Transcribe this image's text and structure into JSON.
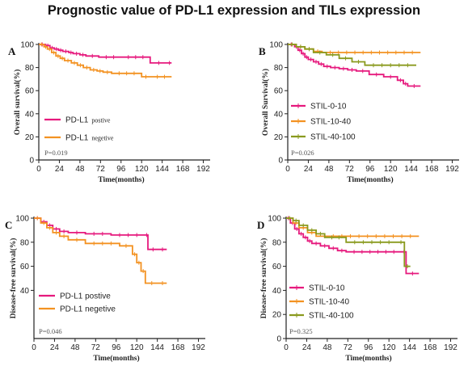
{
  "title": "Prognostic value of PD-L1 expression and TILs expression",
  "chart_data": [
    {
      "type": "line",
      "panel": "A",
      "title": "",
      "xlabel": "Time(months)",
      "ylabel": "Overall survival(%)",
      "xlim": [
        0,
        200
      ],
      "ylim": [
        0,
        100
      ],
      "xticks": [
        0,
        24,
        48,
        72,
        96,
        120,
        144,
        168,
        192
      ],
      "yticks": [
        0,
        20,
        40,
        60,
        80,
        100
      ],
      "legend_position": "bottom-left",
      "annotation": "P=0.019",
      "series": [
        {
          "name": "PD-L1",
          "name_suffix": "postive",
          "color": "#e6197d",
          "x": [
            0,
            8,
            13,
            18,
            23,
            28,
            35,
            40,
            48,
            55,
            70,
            96,
            130,
            150,
            155
          ],
          "y": [
            100,
            99,
            97,
            96,
            95,
            94,
            93,
            92,
            91,
            90,
            89,
            89,
            84,
            84,
            84
          ]
        },
        {
          "name": "PD-L1",
          "name_suffix": "negetive",
          "color": "#f39222",
          "x": [
            0,
            6,
            10,
            15,
            20,
            25,
            30,
            38,
            45,
            52,
            60,
            68,
            75,
            85,
            120,
            130,
            155
          ],
          "y": [
            100,
            98,
            96,
            93,
            90,
            88,
            86,
            84,
            82,
            80,
            78,
            77,
            76,
            75,
            72,
            72,
            72
          ]
        }
      ]
    },
    {
      "type": "line",
      "panel": "B",
      "title": "",
      "xlabel": "Time(months)",
      "ylabel": "Overall Survival(%)",
      "xlim": [
        0,
        200
      ],
      "ylim": [
        0,
        100
      ],
      "xticks": [
        0,
        24,
        48,
        72,
        96,
        120,
        144,
        168,
        192
      ],
      "yticks": [
        0,
        20,
        40,
        60,
        80,
        100
      ],
      "legend_position": "bottom-left",
      "annotation": "P=0.026",
      "series": [
        {
          "name": "STIL-0-10",
          "color": "#e6197d",
          "x": [
            0,
            8,
            12,
            16,
            20,
            24,
            30,
            36,
            42,
            50,
            60,
            70,
            80,
            95,
            112,
            128,
            135,
            140,
            155
          ],
          "y": [
            100,
            98,
            95,
            92,
            89,
            87,
            85,
            83,
            81,
            80,
            79,
            78,
            77,
            74,
            72,
            69,
            66,
            64,
            64
          ]
        },
        {
          "name": "STIL-10-40",
          "color": "#f39222",
          "x": [
            0,
            10,
            20,
            30,
            40,
            155
          ],
          "y": [
            100,
            98,
            96,
            94,
            93,
            93
          ]
        },
        {
          "name": "STIL-40-100",
          "color": "#8a9a1e",
          "x": [
            0,
            10,
            20,
            30,
            45,
            60,
            75,
            90,
            150
          ],
          "y": [
            100,
            98,
            96,
            93,
            91,
            88,
            85,
            82,
            82
          ]
        }
      ]
    },
    {
      "type": "line",
      "panel": "C",
      "title": "",
      "xlabel": "Time(months)",
      "ylabel": "Disease-free survival(%)",
      "xlim": [
        0,
        200
      ],
      "ylim": [
        0,
        100
      ],
      "xticks": [
        0,
        24,
        48,
        72,
        96,
        120,
        144,
        168,
        192
      ],
      "yticks": [
        40,
        60,
        80,
        100
      ],
      "legend_position": "bottom-left",
      "annotation": "P=0.046",
      "series": [
        {
          "name": "PD-L1 postive",
          "color": "#e6197d",
          "x": [
            0,
            8,
            15,
            22,
            30,
            40,
            60,
            90,
            130,
            133,
            145,
            155
          ],
          "y": [
            100,
            97,
            94,
            91,
            89,
            88,
            87,
            86,
            86,
            74,
            74,
            74
          ]
        },
        {
          "name": "PD-L1 negetive",
          "color": "#f39222",
          "x": [
            0,
            8,
            15,
            22,
            30,
            40,
            60,
            100,
            115,
            120,
            125,
            130,
            145,
            155
          ],
          "y": [
            100,
            96,
            92,
            88,
            85,
            82,
            79,
            77,
            70,
            63,
            56,
            46,
            46,
            46
          ]
        }
      ]
    },
    {
      "type": "line",
      "panel": "D",
      "title": "",
      "xlabel": "Time(months)",
      "ylabel": "Disease-free survival(%)",
      "xlim": [
        0,
        200
      ],
      "ylim": [
        0,
        100
      ],
      "xticks": [
        0,
        24,
        48,
        72,
        96,
        120,
        144,
        168,
        192
      ],
      "yticks": [
        0,
        20,
        40,
        60,
        80,
        100
      ],
      "legend_position": "bottom-left",
      "annotation": "P=0.325",
      "series": [
        {
          "name": "STIL-0-10",
          "color": "#e6197d",
          "x": [
            0,
            5,
            10,
            15,
            20,
            25,
            30,
            40,
            50,
            60,
            70,
            135,
            140,
            155
          ],
          "y": [
            100,
            96,
            91,
            87,
            84,
            81,
            79,
            77,
            75,
            73,
            72,
            72,
            54,
            54
          ]
        },
        {
          "name": "STIL-10-40",
          "color": "#f39222",
          "x": [
            0,
            8,
            15,
            25,
            35,
            155
          ],
          "y": [
            100,
            96,
            92,
            88,
            85,
            85
          ]
        },
        {
          "name": "STIL-40-100",
          "color": "#8a9a1e",
          "x": [
            0,
            8,
            15,
            25,
            35,
            45,
            70,
            130,
            138,
            145
          ],
          "y": [
            100,
            98,
            94,
            90,
            87,
            84,
            80,
            80,
            60,
            60
          ]
        }
      ]
    }
  ]
}
